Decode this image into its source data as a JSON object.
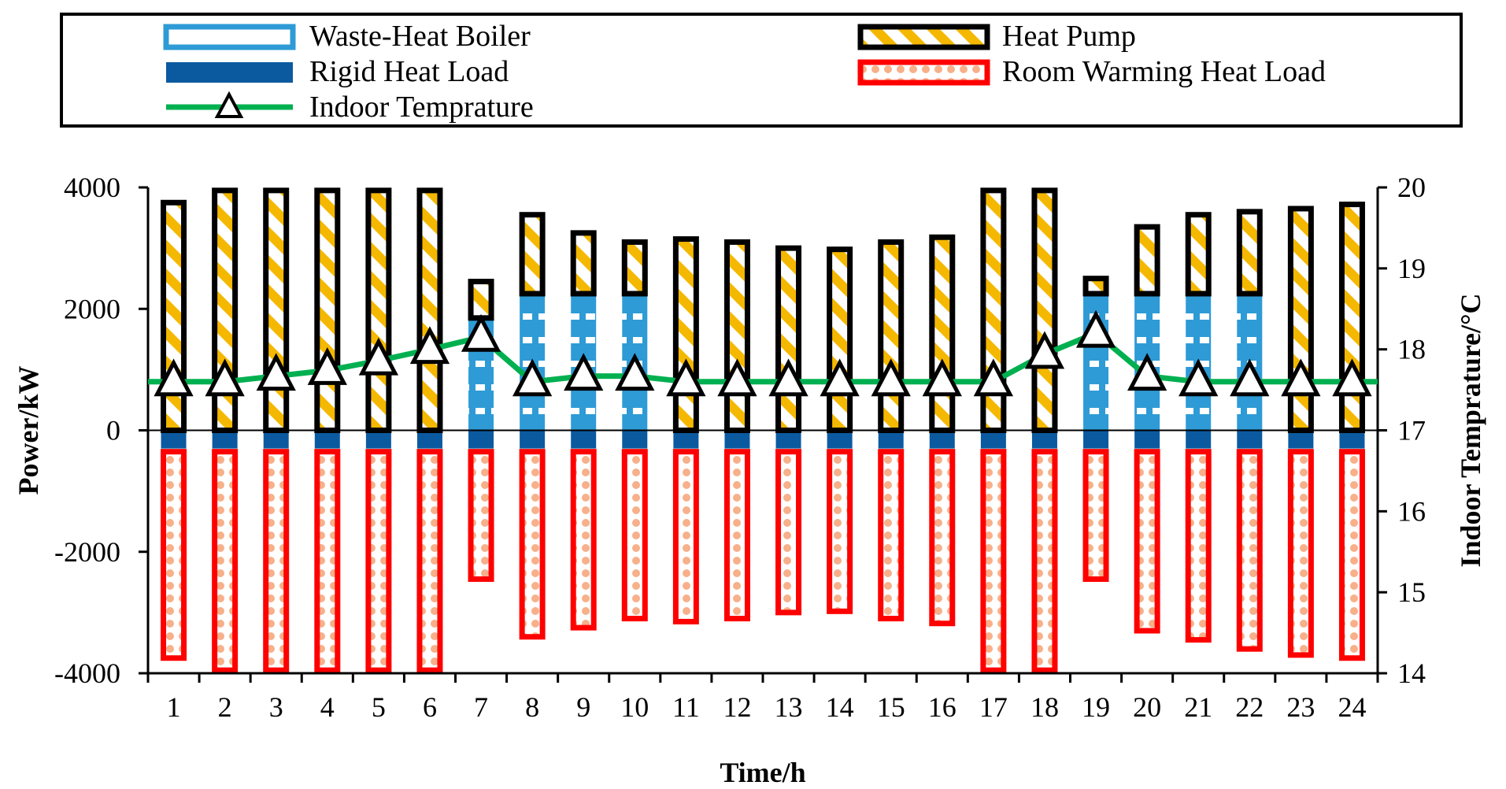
{
  "chart_data": {
    "type": "bar",
    "categories": [
      "1",
      "2",
      "3",
      "4",
      "5",
      "6",
      "7",
      "8",
      "9",
      "10",
      "11",
      "12",
      "13",
      "14",
      "15",
      "16",
      "17",
      "18",
      "19",
      "20",
      "21",
      "22",
      "23",
      "24"
    ],
    "series": [
      {
        "name": "Waste-Heat Boiler",
        "axis": "left",
        "values": [
          0,
          0,
          0,
          0,
          0,
          0,
          1850,
          2250,
          2250,
          2250,
          0,
          0,
          0,
          0,
          0,
          0,
          0,
          0,
          2250,
          2250,
          2250,
          2250,
          0,
          0
        ]
      },
      {
        "name": "Heat Pump",
        "axis": "left",
        "values": [
          3750,
          3950,
          3950,
          3950,
          3950,
          3950,
          600,
          1300,
          1000,
          850,
          3150,
          3100,
          3000,
          2980,
          3100,
          3180,
          3950,
          3950,
          250,
          1100,
          1300,
          1350,
          3650,
          3720
        ]
      },
      {
        "name": "Rigid Heat Load",
        "axis": "left",
        "values": [
          -300,
          -300,
          -300,
          -300,
          -300,
          -300,
          -300,
          -300,
          -300,
          -300,
          -300,
          -300,
          -300,
          -300,
          -300,
          -300,
          -300,
          -300,
          -300,
          -300,
          -300,
          -300,
          -300,
          -300
        ]
      },
      {
        "name": "Room Warming Heat Load",
        "axis": "left",
        "values": [
          -3450,
          -3650,
          -3650,
          -3650,
          -3650,
          -3650,
          -2150,
          -3100,
          -2950,
          -2800,
          -2850,
          -2800,
          -2700,
          -2680,
          -2800,
          -2880,
          -3650,
          -3650,
          -2150,
          -3000,
          -3150,
          -3300,
          -3400,
          -3450
        ]
      },
      {
        "name": "Indoor Temprature",
        "axis": "right",
        "values": [
          17.6,
          17.6,
          17.67,
          17.74,
          17.86,
          18.0,
          18.15,
          17.6,
          17.67,
          17.67,
          17.6,
          17.6,
          17.6,
          17.6,
          17.6,
          17.6,
          17.6,
          17.94,
          18.2,
          17.67,
          17.6,
          17.6,
          17.6,
          17.6
        ]
      }
    ],
    "title": "",
    "xlabel": "Time/h",
    "ylabel": "Power/kW",
    "y2label": "Indoor Temprature/°C",
    "ylim": [
      -4000,
      4000
    ],
    "y2lim": [
      14,
      20
    ],
    "yticks": [
      "4000",
      "2000",
      "0",
      "-2000",
      "-4000"
    ],
    "y2ticks": [
      "20",
      "19",
      "18",
      "17",
      "16",
      "15",
      "14"
    ],
    "grid": false,
    "legend_position": "top"
  },
  "colors": {
    "boiler": "#2e9bd6",
    "heat_pump_stripe": "#f5b800",
    "rigid_load": "#0b5aa0",
    "room_load_border": "#ff0000",
    "room_load_pattern": "#f7b08a",
    "temperature_line": "#00b050"
  }
}
